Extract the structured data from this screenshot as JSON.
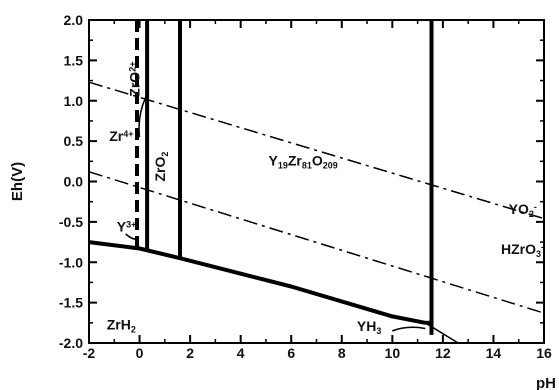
{
  "chart_data": {
    "type": "line",
    "title": "",
    "xlabel": "pH",
    "ylabel": "Eh(V)",
    "xlim": [
      -2,
      16
    ],
    "ylim": [
      -2.0,
      2.0
    ],
    "x_ticks": [
      "-2",
      "0",
      "2",
      "4",
      "6",
      "8",
      "10",
      "12",
      "14",
      "16"
    ],
    "y_ticks": [
      "2.0",
      "1.5",
      "1.0",
      "0.5",
      "0.0",
      "-0.5",
      "-1.0",
      "-1.5",
      "-2.0"
    ],
    "grid": false,
    "series": [
      {
        "style": "solid-thick",
        "x": [
          -2,
          0,
          1.6,
          6,
          10,
          11.3
        ],
        "y": [
          -0.75,
          -0.83,
          -0.95,
          -1.3,
          -1.67,
          -1.75
        ]
      },
      {
        "style": "solid-thick",
        "x": [
          11.3,
          11.55
        ],
        "y": [
          -1.75,
          -1.75
        ]
      },
      {
        "style": "solid-thick",
        "x": [
          0.3,
          0.3
        ],
        "y": [
          2.0,
          -0.85
        ]
      },
      {
        "style": "solid-thick",
        "x": [
          1.6,
          1.6
        ],
        "y": [
          2.0,
          -0.95
        ]
      },
      {
        "style": "solid-thick",
        "x": [
          11.55,
          11.55
        ],
        "y": [
          2.0,
          -1.9
        ]
      },
      {
        "style": "solid-thin",
        "x": [
          11.3,
          12.6
        ],
        "y": [
          -1.75,
          -2.0
        ]
      },
      {
        "style": "dash-dot",
        "x": [
          -2,
          16
        ],
        "y": [
          1.23,
          -0.46
        ]
      },
      {
        "style": "dash-dot",
        "x": [
          -2,
          16
        ],
        "y": [
          0.12,
          -1.63
        ]
      },
      {
        "style": "dashed-thick",
        "x": [
          -0.1,
          -0.1
        ],
        "y": [
          2.0,
          -0.83
        ]
      }
    ],
    "annotations": [
      {
        "text": "ZrO",
        "sup": "2+",
        "x": 0.0,
        "y": 1.05,
        "rotate": -90
      },
      {
        "text": "ZrO",
        "sub": "2",
        "x": 1.0,
        "y": 0.0,
        "rotate": -90
      },
      {
        "text": "Zr",
        "sup": "4+",
        "x": -1.2,
        "y": 0.5
      },
      {
        "text": "Y",
        "sup": "3+",
        "x": -0.9,
        "y": -0.62
      },
      {
        "text": "Y",
        "sub": "19",
        "text2": "Zr",
        "sub2": "81",
        "text3": "O",
        "sub3": "209",
        "x": 5.1,
        "y": 0.2
      },
      {
        "text": "YO",
        "sub": "2",
        "sup": "-",
        "x": 14.6,
        "y": -0.4
      },
      {
        "text": "HZrO",
        "sub": "3",
        "sup": "-",
        "x": 14.3,
        "y": -0.9
      },
      {
        "text": "ZrH",
        "sub": "2",
        "x": -1.3,
        "y": -1.83
      },
      {
        "text": "YH",
        "sub": "3",
        "x": 8.6,
        "y": -1.85
      }
    ]
  }
}
